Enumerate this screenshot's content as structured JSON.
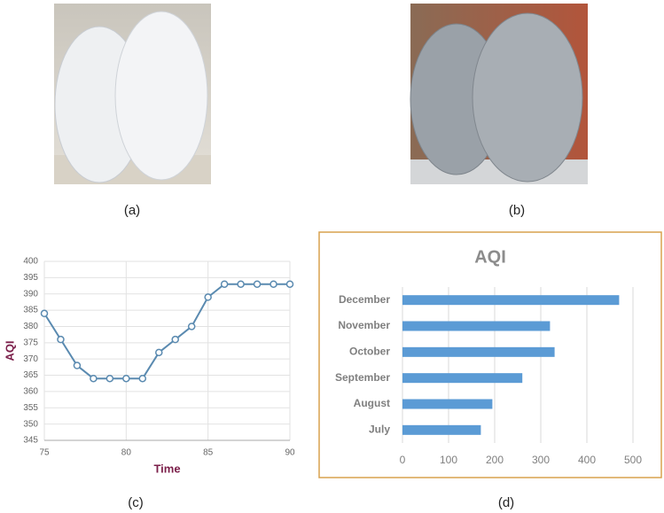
{
  "photos": [
    {
      "caption": "(a)"
    },
    {
      "caption": "(b)"
    }
  ],
  "chart_data": [
    {
      "type": "line",
      "caption": "(c)",
      "x_label": "Time",
      "y_label": "AQI",
      "x": [
        75,
        76,
        77,
        78,
        79,
        80,
        81,
        82,
        83,
        84,
        85,
        86,
        87,
        88,
        89,
        90
      ],
      "values": [
        384,
        376,
        368,
        364,
        364,
        364,
        364,
        372,
        376,
        380,
        389,
        393,
        393,
        393,
        393,
        393
      ],
      "color": "#5a8ab0",
      "xlim": [
        75,
        90
      ],
      "xticks": [
        75,
        80,
        85,
        90
      ],
      "ylim": [
        345,
        400
      ],
      "yticks": [
        345,
        350,
        355,
        360,
        365,
        370,
        375,
        380,
        385,
        390,
        395,
        400
      ],
      "grid": true
    },
    {
      "type": "bar",
      "orientation": "horizontal",
      "caption": "(d)",
      "title": "AQI",
      "categories": [
        "December",
        "November",
        "October",
        "September",
        "August",
        "July"
      ],
      "values": [
        470,
        320,
        330,
        260,
        195,
        170
      ],
      "color": "#5b9bd5",
      "xlim": [
        0,
        500
      ],
      "xticks": [
        0,
        100,
        200,
        300,
        400,
        500
      ],
      "grid": true
    }
  ]
}
